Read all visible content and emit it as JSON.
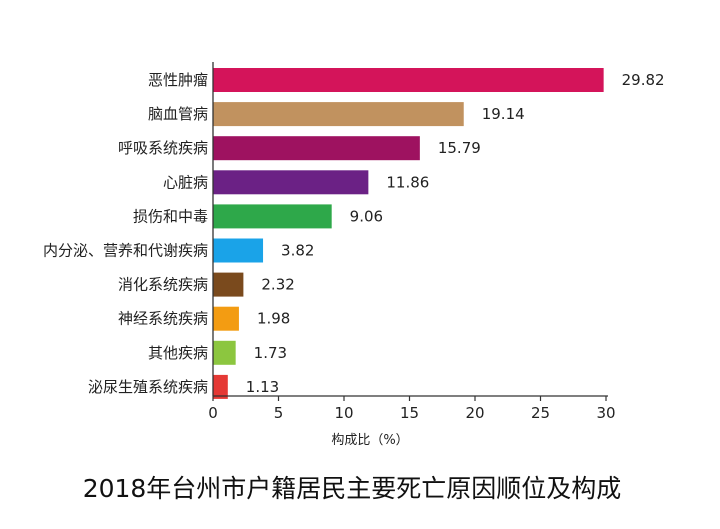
{
  "chart_data": {
    "type": "bar",
    "orientation": "horizontal",
    "title": "2018年台州市户籍居民主要死亡原因顺位及构成",
    "xlabel": "构成比（%）",
    "ylabel": "",
    "xlim": [
      0,
      30
    ],
    "xticks": [
      0,
      5,
      10,
      15,
      20,
      25,
      30
    ],
    "grid": false,
    "categories": [
      "恶性肿瘤",
      "脑血管病",
      "呼吸系统疾病",
      "心脏病",
      "损伤和中毒",
      "内分泌、营养和代谢疾病",
      "消化系统疾病",
      "神经系统疾病",
      "其他疾病",
      "泌尿生殖系统疾病"
    ],
    "values": [
      29.82,
      19.14,
      15.79,
      11.86,
      9.06,
      3.82,
      2.32,
      1.98,
      1.73,
      1.13
    ],
    "value_labels": [
      "29.82",
      "19.14",
      "15.79",
      "11.86",
      "9.06",
      "3.82",
      "2.32",
      "1.98",
      "1.73",
      "1.13"
    ],
    "colors": [
      "#d4145a",
      "#c1925f",
      "#9e1260",
      "#6b2185",
      "#2ea84a",
      "#1aa3e8",
      "#7a4a1d",
      "#f39c12",
      "#8cc63f",
      "#e53935"
    ]
  }
}
